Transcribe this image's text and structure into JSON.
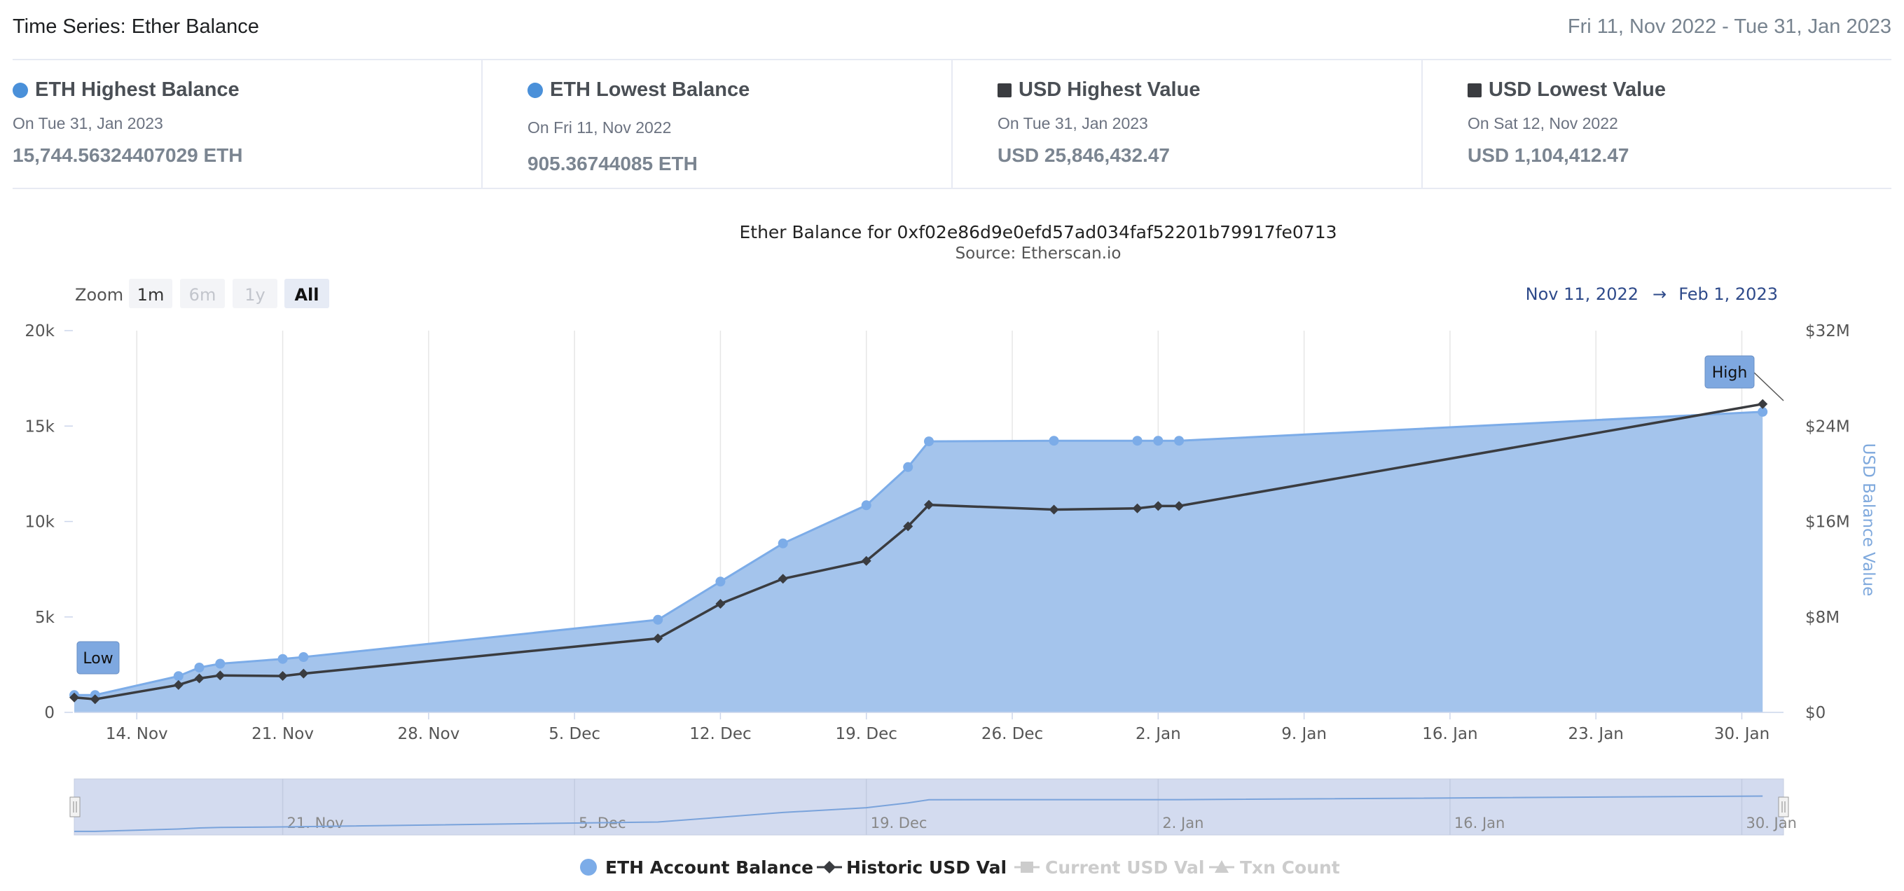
{
  "header": {
    "title": "Time Series: Ether Balance",
    "range": "Fri 11, Nov 2022 - Tue 31, Jan 2023"
  },
  "stats": [
    {
      "marker": "dot",
      "title": "ETH Highest Balance",
      "date": "On Tue 31, Jan 2023",
      "value": "15,744.56324407029 ETH"
    },
    {
      "marker": "dot",
      "title": "ETH Lowest Balance",
      "date": "On Fri 11, Nov 2022",
      "value": "905.36744085 ETH"
    },
    {
      "marker": "square",
      "title": "USD Highest Value",
      "date": "On Tue 31, Jan 2023",
      "value": "USD 25,846,432.47"
    },
    {
      "marker": "square",
      "title": "USD Lowest Value",
      "date": "On Sat 12, Nov 2022",
      "value": "USD 1,104,412.47"
    }
  ],
  "zoom": {
    "label": "Zoom",
    "buttons": [
      {
        "label": "1m",
        "state": "normal"
      },
      {
        "label": "6m",
        "state": "disabled"
      },
      {
        "label": "1y",
        "state": "disabled"
      },
      {
        "label": "All",
        "state": "selected"
      }
    ]
  },
  "range_selector": {
    "from": "Nov 11, 2022",
    "arrow": "→",
    "to": "Feb 1, 2023"
  },
  "flags": {
    "low": "Low",
    "high": "High"
  },
  "colors": {
    "eth": "#7cace8",
    "eth_fill": "#a4c4ec",
    "usd": "#3a3c40",
    "disabled": "#cccccc"
  },
  "chart_data": {
    "type": "area",
    "title": "Ether Balance for 0xf02e86d9e0efd57ad034faf52201b79917fe0713",
    "subtitle": "Source: Etherscan.io",
    "x_domain": [
      "2022-11-11",
      "2023-02-01"
    ],
    "x_ticks": [
      {
        "date": "2022-11-14",
        "label": "14. Nov"
      },
      {
        "date": "2022-11-21",
        "label": "21. Nov"
      },
      {
        "date": "2022-11-28",
        "label": "28. Nov"
      },
      {
        "date": "2022-12-05",
        "label": "5. Dec"
      },
      {
        "date": "2022-12-12",
        "label": "12. Dec"
      },
      {
        "date": "2022-12-19",
        "label": "19. Dec"
      },
      {
        "date": "2022-12-26",
        "label": "26. Dec"
      },
      {
        "date": "2023-01-02",
        "label": "2. Jan"
      },
      {
        "date": "2023-01-09",
        "label": "9. Jan"
      },
      {
        "date": "2023-01-16",
        "label": "16. Jan"
      },
      {
        "date": "2023-01-23",
        "label": "23. Jan"
      },
      {
        "date": "2023-01-30",
        "label": "30. Jan"
      }
    ],
    "navigator_ticks": [
      {
        "date": "2022-11-21",
        "label": "21. Nov"
      },
      {
        "date": "2022-12-05",
        "label": "5. Dec"
      },
      {
        "date": "2022-12-19",
        "label": "19. Dec"
      },
      {
        "date": "2023-01-02",
        "label": "2. Jan"
      },
      {
        "date": "2023-01-16",
        "label": "16. Jan"
      },
      {
        "date": "2023-01-30",
        "label": "30. Jan"
      }
    ],
    "y_left": {
      "min": 0,
      "max": 20000,
      "ticks": [
        0,
        5000,
        10000,
        15000,
        20000
      ],
      "tick_labels": [
        "0",
        "5k",
        "10k",
        "15k",
        "20k"
      ]
    },
    "y_right": {
      "min": 0,
      "max": 32000000,
      "ticks": [
        0,
        8000000,
        16000000,
        24000000,
        32000000
      ],
      "tick_labels": [
        "$0",
        "$8M",
        "$16M",
        "$24M",
        "$32M"
      ],
      "title": "USD Balance Value"
    },
    "series": [
      {
        "name": "ETH Account Balance",
        "axis": "left",
        "style": "area",
        "points": [
          {
            "x": "2022-11-11",
            "y": 905
          },
          {
            "x": "2022-11-12",
            "y": 910
          },
          {
            "x": "2022-11-16",
            "y": 1900
          },
          {
            "x": "2022-11-17",
            "y": 2350
          },
          {
            "x": "2022-11-18",
            "y": 2550
          },
          {
            "x": "2022-11-21",
            "y": 2800
          },
          {
            "x": "2022-11-22",
            "y": 2900
          },
          {
            "x": "2022-12-09",
            "y": 4850
          },
          {
            "x": "2022-12-12",
            "y": 6850
          },
          {
            "x": "2022-12-15",
            "y": 8850
          },
          {
            "x": "2022-12-19",
            "y": 10850
          },
          {
            "x": "2022-12-21",
            "y": 12850
          },
          {
            "x": "2022-12-22",
            "y": 14200
          },
          {
            "x": "2022-12-28",
            "y": 14230
          },
          {
            "x": "2023-01-01",
            "y": 14230
          },
          {
            "x": "2023-01-02",
            "y": 14230
          },
          {
            "x": "2023-01-03",
            "y": 14230
          },
          {
            "x": "2023-01-31",
            "y": 15745
          }
        ]
      },
      {
        "name": "Historic USD Val",
        "axis": "right",
        "style": "line",
        "points": [
          {
            "x": "2022-11-11",
            "y": 1250000
          },
          {
            "x": "2022-11-12",
            "y": 1104412
          },
          {
            "x": "2022-11-16",
            "y": 2300000
          },
          {
            "x": "2022-11-17",
            "y": 2850000
          },
          {
            "x": "2022-11-18",
            "y": 3100000
          },
          {
            "x": "2022-11-21",
            "y": 3050000
          },
          {
            "x": "2022-11-22",
            "y": 3250000
          },
          {
            "x": "2022-12-09",
            "y": 6200000
          },
          {
            "x": "2022-12-12",
            "y": 9100000
          },
          {
            "x": "2022-12-15",
            "y": 11200000
          },
          {
            "x": "2022-12-19",
            "y": 12700000
          },
          {
            "x": "2022-12-21",
            "y": 15600000
          },
          {
            "x": "2022-12-22",
            "y": 17400000
          },
          {
            "x": "2022-12-28",
            "y": 17000000
          },
          {
            "x": "2023-01-01",
            "y": 17100000
          },
          {
            "x": "2023-01-02",
            "y": 17300000
          },
          {
            "x": "2023-01-03",
            "y": 17300000
          },
          {
            "x": "2023-01-31",
            "y": 25846432
          }
        ]
      }
    ],
    "legend": [
      {
        "name": "ETH Account Balance",
        "symbol": "circle",
        "state": "active"
      },
      {
        "name": "Historic USD Val",
        "symbol": "diamond-line",
        "state": "active"
      },
      {
        "name": "Current USD Val",
        "symbol": "square-line",
        "state": "inactive"
      },
      {
        "name": "Txn Count",
        "symbol": "triangle-line",
        "state": "inactive"
      }
    ],
    "legend_position": "bottom-center",
    "grid": "vertical"
  }
}
